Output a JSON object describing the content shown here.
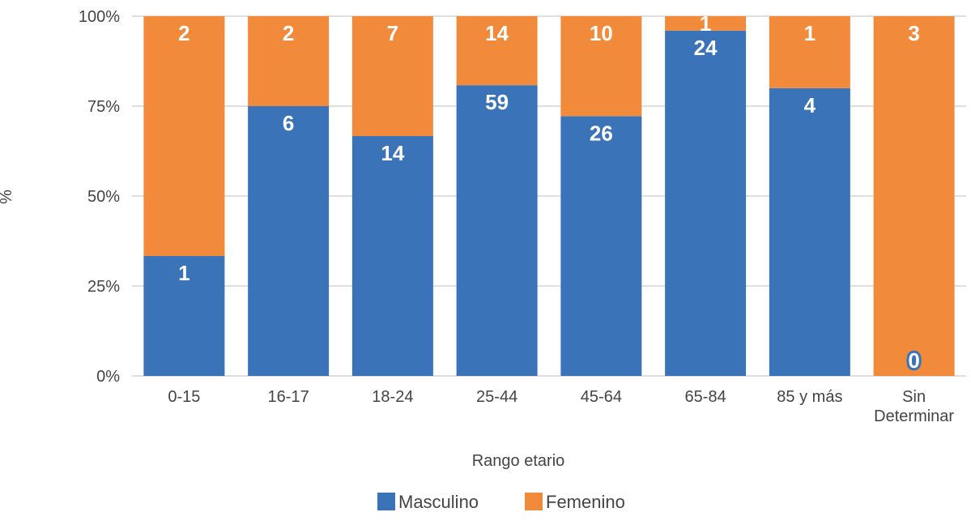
{
  "chart_data": {
    "type": "bar",
    "stacked": true,
    "normalized": true,
    "categories": [
      "0-15",
      "16-17",
      "18-24",
      "25-44",
      "45-64",
      "65-84",
      "85 y más",
      "Sin Determinar"
    ],
    "series": [
      {
        "name": "Masculino",
        "color": "#3b73b9",
        "values": [
          1,
          6,
          14,
          59,
          26,
          24,
          4,
          0
        ]
      },
      {
        "name": "Femenino",
        "color": "#f28a3c",
        "values": [
          2,
          2,
          7,
          14,
          10,
          1,
          1,
          3
        ]
      }
    ],
    "xlabel": "Rango etario",
    "ylabel": "%",
    "yticks": [
      "0%",
      "25%",
      "50%",
      "75%",
      "100%"
    ],
    "ylim": [
      0,
      100
    ],
    "grid": true,
    "legend_position": "bottom"
  }
}
